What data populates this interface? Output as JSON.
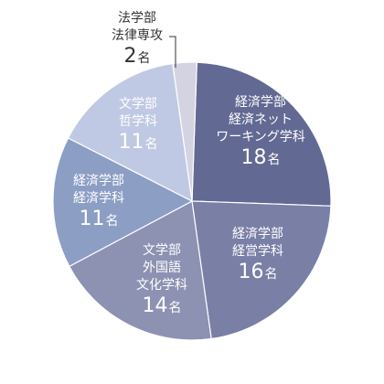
{
  "chart_data": {
    "type": "pie",
    "total_note": "",
    "slices": [
      {
        "lines": [
          "経済学部",
          "経済ネット",
          "ワーキング学科"
        ],
        "count": "18",
        "unit": "名",
        "value": 18,
        "color": "#626993"
      },
      {
        "lines": [
          "経済学部",
          "経営学科"
        ],
        "count": "16",
        "unit": "名",
        "value": 16,
        "color": "#7a7fa6"
      },
      {
        "lines": [
          "文学部",
          "外国語",
          "文化学科"
        ],
        "count": "14",
        "unit": "名",
        "value": 14,
        "color": "#8d92b3"
      },
      {
        "lines": [
          "経済学部",
          "経済学科"
        ],
        "count": "11",
        "unit": "名",
        "value": 11,
        "color": "#8c9ec4"
      },
      {
        "lines": [
          "文学部",
          "哲学科"
        ],
        "count": "11",
        "unit": "名",
        "value": 11,
        "color": "#c0c9e3"
      },
      {
        "lines": [
          "法学部",
          "法律専攻"
        ],
        "count": "2",
        "unit": "名",
        "value": 2,
        "color": "#d3d3e2"
      }
    ]
  }
}
